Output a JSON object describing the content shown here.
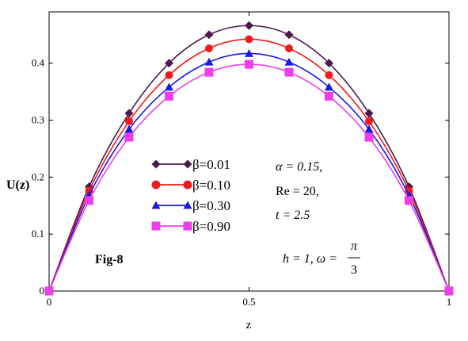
{
  "chart_data": {
    "type": "line",
    "xlabel": "z",
    "ylabel": "U(z)",
    "xlim": [
      0,
      1
    ],
    "ylim": [
      0,
      0.49
    ],
    "x_ticks": [
      0,
      0.5,
      1
    ],
    "x_tick_labels": [
      "0",
      "0.5",
      "1"
    ],
    "y_ticks": [
      0,
      0.1,
      0.2,
      0.3,
      0.4
    ],
    "y_tick_labels": [
      "0",
      "0.1",
      "0.2",
      "0.3",
      "0.4"
    ],
    "legend_position": "center-left",
    "grid": false,
    "x": [
      0,
      0.1,
      0.2,
      0.3,
      0.4,
      0.5,
      0.6,
      0.7,
      0.8,
      0.9,
      1.0
    ],
    "series": [
      {
        "name": "β=0.01",
        "color": "#4b1a4b",
        "marker": "diamond",
        "values": [
          0,
          0.183,
          0.312,
          0.4,
          0.45,
          0.466,
          0.45,
          0.4,
          0.312,
          0.183,
          0
        ]
      },
      {
        "name": "β=0.10",
        "color": "#ee1c1c",
        "marker": "circle",
        "values": [
          0,
          0.176,
          0.298,
          0.379,
          0.426,
          0.442,
          0.426,
          0.379,
          0.298,
          0.176,
          0
        ]
      },
      {
        "name": "β=0.30",
        "color": "#1a1ae6",
        "marker": "triangle",
        "values": [
          0,
          0.168,
          0.284,
          0.358,
          0.402,
          0.417,
          0.402,
          0.358,
          0.284,
          0.168,
          0
        ]
      },
      {
        "name": "β=0.90",
        "color": "#ee3ee8",
        "marker": "square",
        "values": [
          0,
          0.159,
          0.27,
          0.342,
          0.384,
          0.398,
          0.384,
          0.342,
          0.27,
          0.159,
          0
        ]
      }
    ],
    "annotations": {
      "fig_label": "Fig-8",
      "alpha": "α = 0.15,",
      "re": "Re = 20,",
      "t": "t = 2.5",
      "h_omega": "h = 1, ω =",
      "pi": "π",
      "three": "3"
    }
  }
}
